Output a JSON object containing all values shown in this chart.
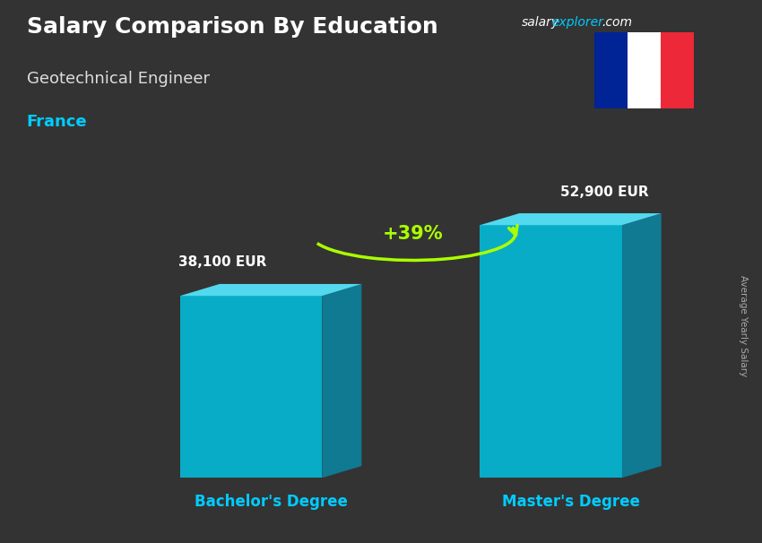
{
  "title": "Salary Comparison By Education",
  "subtitle": "Geotechnical Engineer",
  "country": "France",
  "watermark_salary": "salary",
  "watermark_explorer": "explorer",
  "watermark_com": ".com",
  "ylabel": "Average Yearly Salary",
  "categories": [
    "Bachelor's Degree",
    "Master's Degree"
  ],
  "values": [
    38100,
    52900
  ],
  "value_labels": [
    "38,100 EUR",
    "52,900 EUR"
  ],
  "pct_change": "+39%",
  "bar_front_color": "#00c8e8",
  "bar_top_color": "#55e8ff",
  "bar_side_color": "#0099bb",
  "background_color": "#333333",
  "title_color": "#ffffff",
  "subtitle_color": "#dddddd",
  "country_color": "#00ccff",
  "watermark_color_salary": "#ffffff",
  "watermark_color_explorer": "#00ccff",
  "watermark_color_com": "#ffffff",
  "value_label_color": "#ffffff",
  "cat_label_color": "#00ccff",
  "pct_color": "#aaff00",
  "arrow_color": "#aaff00",
  "ylabel_color": "#aaaaaa",
  "flag_blue": "#002395",
  "flag_white": "#ffffff",
  "flag_red": "#ED2939"
}
